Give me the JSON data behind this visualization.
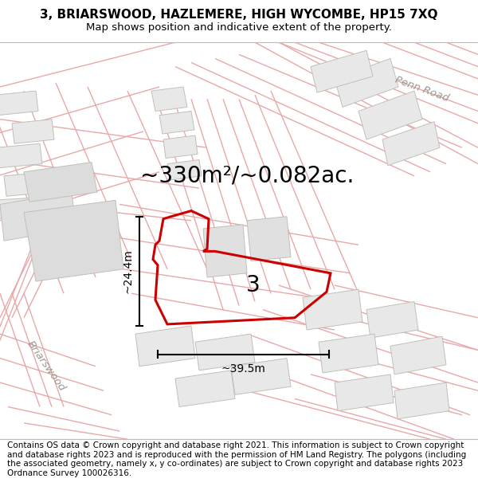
{
  "title_line1": "3, BRIARSWOOD, HAZLEMERE, HIGH WYCOMBE, HP15 7XQ",
  "title_line2": "Map shows position and indicative extent of the property.",
  "footer_text": "Contains OS data © Crown copyright and database right 2021. This information is subject to Crown copyright and database rights 2023 and is reproduced with the permission of HM Land Registry. The polygons (including the associated geometry, namely x, y co-ordinates) are subject to Crown copyright and database rights 2023 Ordnance Survey 100026316.",
  "area_label": "~330m²/~0.082ac.",
  "width_label": "~39.5m",
  "height_label": "~24.4m",
  "plot_number": "3",
  "bg_color": "#ffffff",
  "road_line_color": "#e8a8a8",
  "road_line_color2": "#f0c0c0",
  "building_fill": "#e8e8e8",
  "building_edge": "#c0c0b8",
  "plot_color": "#cc0000",
  "road_name_1": "Penn Road",
  "road_name_2": "Briarswood",
  "title_fontsize": 11,
  "subtitle_fontsize": 9.5,
  "area_fontsize": 20,
  "footer_fontsize": 7.5,
  "map_xlim": [
    0,
    600
  ],
  "map_ylim": [
    0,
    490
  ]
}
